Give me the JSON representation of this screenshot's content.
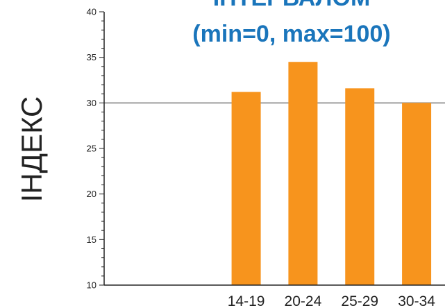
{
  "chart_data": {
    "type": "bar",
    "title_lines": [
      "ІНТЕРВАЛОМ",
      "(min=0, max=100)"
    ],
    "ylabel": "ІНДЕКС",
    "xlabel": "",
    "categories": [
      "",
      "",
      "14-19",
      "20-24",
      "25-29",
      "30-34"
    ],
    "values": [
      null,
      null,
      31.2,
      34.5,
      31.6,
      30.0
    ],
    "ylim": [
      10,
      40
    ],
    "yticks": [
      10,
      15,
      20,
      25,
      30,
      35,
      40
    ],
    "reference_line": 30,
    "grid": false,
    "colors": {
      "bar": "#F7941D",
      "title": "#1A75BB",
      "reference_line": "#9E9E9E",
      "axis": "#222222"
    }
  }
}
